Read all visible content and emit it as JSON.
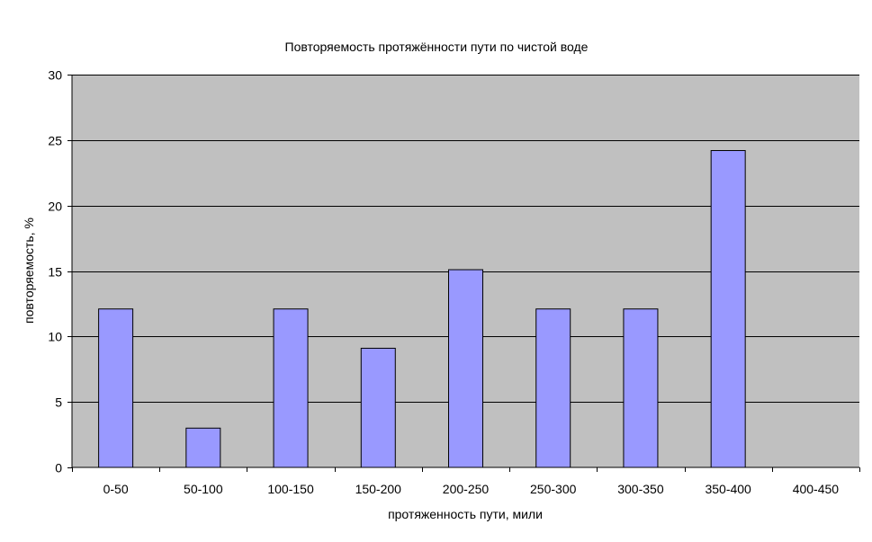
{
  "chart_data": {
    "type": "bar",
    "title": "Повторяемость протяжённости пути по чистой воде",
    "xlabel": "протяженность пути, мили",
    "ylabel": "повторяемость, %",
    "categories": [
      "0-50",
      "50-100",
      "100-150",
      "150-200",
      "200-250",
      "250-300",
      "300-350",
      "350-400",
      "400-450"
    ],
    "values": [
      12.1,
      3.0,
      12.1,
      9.1,
      15.1,
      12.1,
      12.1,
      24.2,
      0
    ],
    "ylim": [
      0,
      30
    ],
    "yticks": [
      0,
      5,
      10,
      15,
      20,
      25,
      30
    ],
    "grid": true,
    "legend": "none",
    "colors": {
      "plot_background": "#c0c0c0",
      "bar_fill": "#9999ff",
      "bar_stroke": "#000000",
      "gridline": "#000000"
    }
  }
}
